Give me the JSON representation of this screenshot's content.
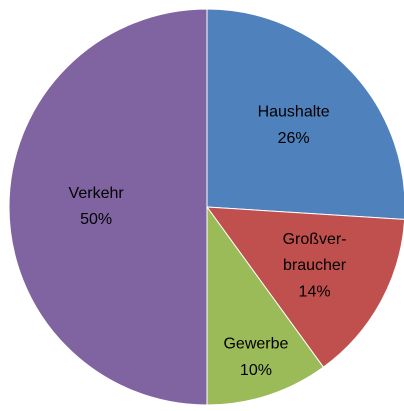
{
  "chart_data": {
    "type": "pie",
    "categories": [
      "Haushalte",
      "Großver-\nbraucher",
      "Gewerbe",
      "Verkehr"
    ],
    "values": [
      26,
      14,
      10,
      50
    ],
    "value_labels": [
      "26%",
      "14%",
      "10%",
      "50%"
    ],
    "colors": [
      "#4f81bd",
      "#c0504d",
      "#9bbb59",
      "#8064a2"
    ]
  }
}
